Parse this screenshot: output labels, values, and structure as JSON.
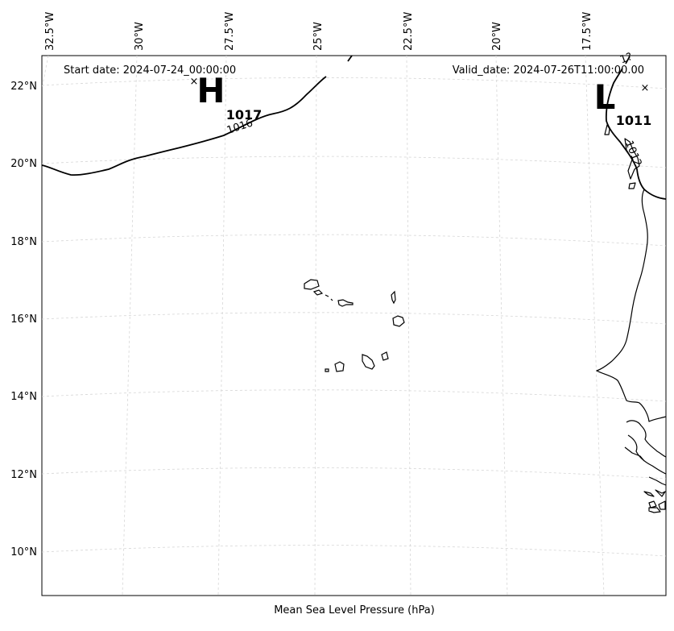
{
  "header": {
    "start_date": "Start date: 2024-07-24_00:00:00",
    "valid_date": "Valid_date: 2024-07-26T11:00:00.00"
  },
  "footer": {
    "caption": "Mean Sea Level Pressure (hPa)"
  },
  "axes": {
    "lon_labels": [
      "32.5°W",
      "30°W",
      "27.5°W",
      "25°W",
      "22.5°W",
      "20°W",
      "17.5°W"
    ],
    "lat_labels": [
      "22°N",
      "20°N",
      "18°N",
      "16°N",
      "14°N",
      "12°N",
      "10°N"
    ]
  },
  "pressure_centers": {
    "high": {
      "letter": "H",
      "value": "1017",
      "marker": "×"
    },
    "low": {
      "letter": "L",
      "value": "1011",
      "marker": "×"
    }
  },
  "isobars": {
    "label_1016": "1016",
    "label_1012": "1012",
    "label_partial": "1?"
  }
}
